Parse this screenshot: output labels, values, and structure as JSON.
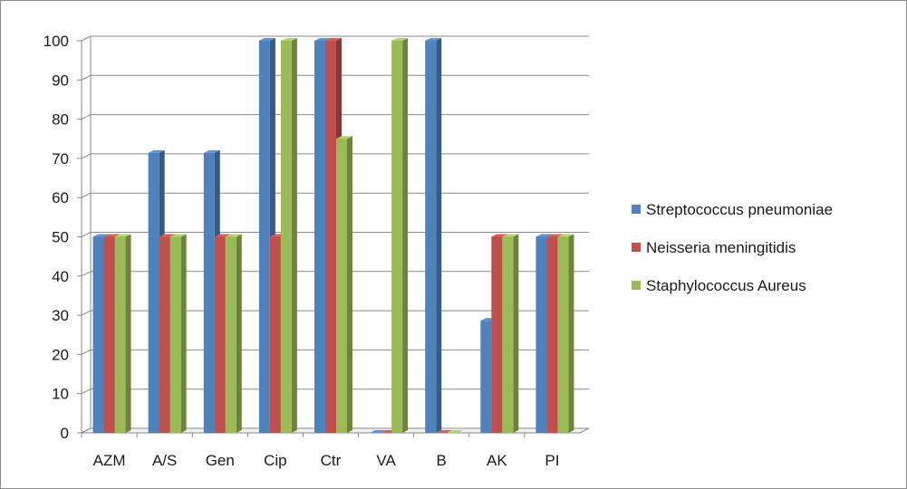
{
  "chart_data": {
    "type": "bar",
    "title": "",
    "xlabel": "",
    "ylabel": "",
    "ylim": [
      0,
      100
    ],
    "yticks": [
      0,
      10,
      20,
      30,
      40,
      50,
      60,
      70,
      80,
      90,
      100
    ],
    "grid": true,
    "legend_position": "right",
    "categories": [
      "AZM",
      "A/S",
      "Gen",
      "Cip",
      "Ctr",
      "VA",
      "B",
      "AK",
      "PI"
    ],
    "series": [
      {
        "name": "Streptococcus pneumoniae",
        "color": "#4f81bd",
        "values": [
          50,
          71.4,
          71.4,
          100,
          100,
          0,
          100,
          28.6,
          50
        ]
      },
      {
        "name": "Neisseria meningitidis",
        "color": "#c0504d",
        "values": [
          50,
          50,
          50,
          50,
          100,
          0,
          0,
          50,
          50
        ]
      },
      {
        "name": "Staphylococcus Aureus",
        "color": "#9bbb59",
        "values": [
          50,
          50,
          50,
          100,
          75,
          100,
          0,
          50,
          50
        ]
      }
    ]
  }
}
